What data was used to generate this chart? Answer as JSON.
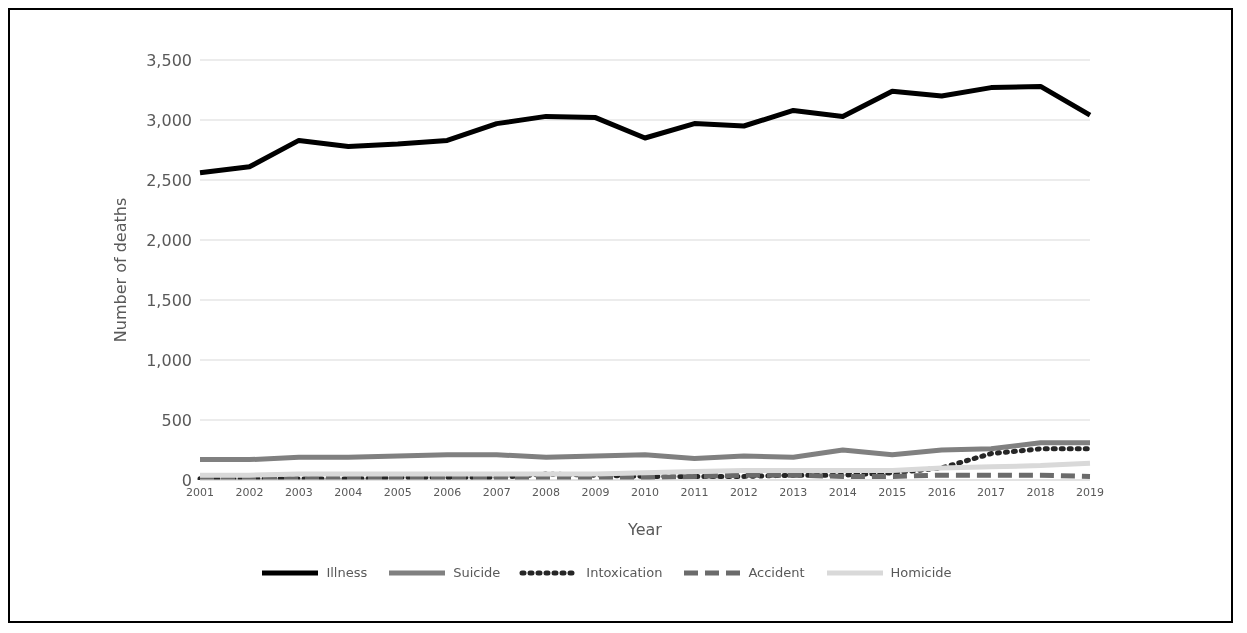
{
  "chart_data": {
    "type": "line",
    "xlabel": "Year",
    "ylabel": "Number of deaths",
    "categories": [
      "2001",
      "2002",
      "2003",
      "2004",
      "2005",
      "2006",
      "2007",
      "2008",
      "2009",
      "2010",
      "2011",
      "2012",
      "2013",
      "2014",
      "2015",
      "2016",
      "2017",
      "2018",
      "2019"
    ],
    "series": [
      {
        "name": "Illness",
        "color": "#000000",
        "line_style": "solid",
        "values": [
          2560,
          2610,
          2830,
          2780,
          2800,
          2830,
          2970,
          3030,
          3020,
          2850,
          2970,
          2950,
          3080,
          3030,
          3240,
          3200,
          3270,
          3280,
          3040
        ]
      },
      {
        "name": "Suicide",
        "color": "#808080",
        "line_style": "solid",
        "values": [
          170,
          170,
          190,
          190,
          200,
          210,
          210,
          190,
          200,
          210,
          180,
          200,
          190,
          250,
          210,
          250,
          260,
          310,
          310
        ]
      },
      {
        "name": "Intoxication",
        "color": "#262626",
        "line_style": "dotted",
        "values": [
          10,
          10,
          10,
          10,
          20,
          20,
          20,
          50,
          40,
          30,
          30,
          30,
          40,
          40,
          60,
          100,
          220,
          260,
          260
        ]
      },
      {
        "name": "Accident",
        "color": "#6b6b6b",
        "line_style": "dashed",
        "values": [
          10,
          10,
          10,
          20,
          20,
          20,
          20,
          20,
          20,
          20,
          30,
          40,
          40,
          30,
          30,
          40,
          40,
          40,
          30
        ]
      },
      {
        "name": "Homicide",
        "color": "#d9d9d9",
        "line_style": "solid",
        "values": [
          40,
          40,
          50,
          50,
          50,
          50,
          50,
          50,
          50,
          60,
          70,
          80,
          80,
          80,
          80,
          100,
          110,
          120,
          140
        ]
      }
    ],
    "ylim": [
      0,
      3500
    ],
    "yticks": [
      0,
      500,
      {
        "value": 1000,
        "label": "1,000"
      },
      {
        "value": 1500,
        "label": "1,500"
      },
      {
        "value": 2000,
        "label": "2,000"
      },
      {
        "value": 2500,
        "label": "2,500"
      },
      {
        "value": 3000,
        "label": "3,000"
      },
      {
        "value": 3500,
        "label": "3,500"
      }
    ],
    "grid": "y",
    "legend": "bottom",
    "marker": "none"
  }
}
